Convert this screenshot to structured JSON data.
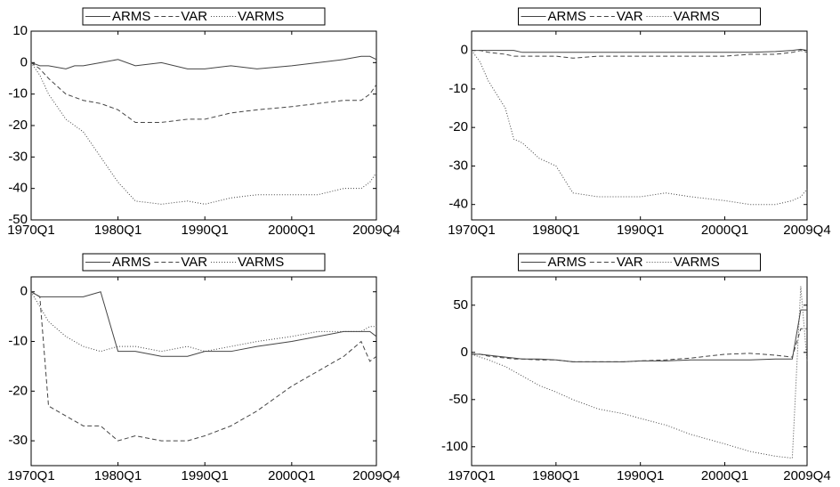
{
  "chart_data": [
    {
      "type": "line",
      "x": [
        1970,
        1971,
        1972,
        1974,
        1975,
        1976,
        1978,
        1980,
        1982,
        1985,
        1988,
        1990,
        1993,
        1996,
        2000,
        2003,
        2006,
        2008,
        2009,
        2009.75
      ],
      "xlim": [
        1970,
        2009.75
      ],
      "xticks": [
        {
          "value": 1970,
          "label": "1970Q1"
        },
        {
          "value": 1980,
          "label": "1980Q1"
        },
        {
          "value": 1990,
          "label": "1990Q1"
        },
        {
          "value": 2000,
          "label": "2000Q1"
        },
        {
          "value": 2009.75,
          "label": "2009Q4"
        }
      ],
      "ylim": [
        -50,
        10
      ],
      "yticks": [
        -50,
        -40,
        -30,
        -20,
        -10,
        0,
        10
      ],
      "series": [
        {
          "name": "ARMS",
          "color": "#444444",
          "dash": "solid",
          "values": [
            0,
            -1,
            -1,
            -2,
            -1,
            -1,
            0,
            1,
            -1,
            0,
            -2,
            -2,
            -1,
            -2,
            -1,
            0,
            1,
            2,
            2,
            1
          ]
        },
        {
          "name": "VAR",
          "color": "#444444",
          "dash": "dashed",
          "values": [
            0,
            -2,
            -5,
            -10,
            -11,
            -12,
            -13,
            -15,
            -19,
            -19,
            -18,
            -18,
            -16,
            -15,
            -14,
            -13,
            -12,
            -12,
            -10,
            -7
          ]
        },
        {
          "name": "VARMS",
          "color": "#444444",
          "dash": "dotted",
          "values": [
            0,
            -4,
            -10,
            -18,
            -20,
            -22,
            -30,
            -38,
            -44,
            -45,
            -44,
            -45,
            -43,
            -42,
            -42,
            -42,
            -40,
            -40,
            -38,
            -35
          ]
        }
      ]
    },
    {
      "type": "line",
      "x": [
        1970,
        1971,
        1972,
        1974,
        1975,
        1976,
        1978,
        1980,
        1982,
        1985,
        1988,
        1990,
        1993,
        1996,
        2000,
        2003,
        2006,
        2008,
        2009,
        2009.75
      ],
      "xlim": [
        1970,
        2009.75
      ],
      "xticks": [
        {
          "value": 1970,
          "label": "1970Q1"
        },
        {
          "value": 1980,
          "label": "1980Q1"
        },
        {
          "value": 1990,
          "label": "1990Q1"
        },
        {
          "value": 2000,
          "label": "2000Q1"
        },
        {
          "value": 2009.75,
          "label": "2009Q4"
        }
      ],
      "ylim": [
        -44,
        5
      ],
      "yticks": [
        -40,
        -30,
        -20,
        -10,
        0
      ],
      "series": [
        {
          "name": "ARMS",
          "color": "#444444",
          "dash": "solid",
          "values": [
            0,
            0,
            0,
            0,
            0,
            -0.5,
            -0.5,
            -0.5,
            -0.5,
            -0.5,
            -0.5,
            -0.5,
            -0.5,
            -0.5,
            -0.5,
            -0.5,
            -0.3,
            0,
            0.3,
            0
          ]
        },
        {
          "name": "VAR",
          "color": "#444444",
          "dash": "dashed",
          "values": [
            0,
            0,
            -0.5,
            -1,
            -1.5,
            -1.5,
            -1.5,
            -1.5,
            -2,
            -1.5,
            -1.5,
            -1.5,
            -1.5,
            -1.5,
            -1.5,
            -1,
            -1,
            -0.5,
            0,
            -0.5
          ]
        },
        {
          "name": "VARMS",
          "color": "#444444",
          "dash": "dotted",
          "values": [
            0,
            -3,
            -8,
            -15,
            -23,
            -24,
            -28,
            -30,
            -37,
            -38,
            -38,
            -38,
            -37,
            -38,
            -39,
            -40,
            -40,
            -39,
            -38,
            -36
          ]
        }
      ]
    },
    {
      "type": "line",
      "x": [
        1970,
        1971,
        1972,
        1974,
        1975,
        1976,
        1978,
        1980,
        1982,
        1985,
        1988,
        1990,
        1993,
        1996,
        2000,
        2003,
        2006,
        2008,
        2009,
        2009.75
      ],
      "xlim": [
        1970,
        2009.75
      ],
      "xticks": [
        {
          "value": 1970,
          "label": "1970Q1"
        },
        {
          "value": 1980,
          "label": "1980Q1"
        },
        {
          "value": 1990,
          "label": "1990Q1"
        },
        {
          "value": 2000,
          "label": "2000Q1"
        },
        {
          "value": 2009.75,
          "label": "2009Q4"
        }
      ],
      "ylim": [
        -35,
        3
      ],
      "yticks": [
        -30,
        -20,
        -10,
        0
      ],
      "series": [
        {
          "name": "ARMS",
          "color": "#444444",
          "dash": "solid",
          "values": [
            0,
            -1,
            -1,
            -1,
            -1,
            -1,
            0,
            -12,
            -12,
            -13,
            -13,
            -12,
            -12,
            -11,
            -10,
            -9,
            -8,
            -8,
            -8,
            -9
          ]
        },
        {
          "name": "VAR",
          "color": "#444444",
          "dash": "dashed",
          "values": [
            0,
            -1,
            -23,
            -25,
            -26,
            -27,
            -27,
            -30,
            -29,
            -30,
            -30,
            -29,
            -27,
            -24,
            -19,
            -16,
            -13,
            -10,
            -14,
            -13
          ]
        },
        {
          "name": "VARMS",
          "color": "#444444",
          "dash": "dotted",
          "values": [
            0,
            -3,
            -6,
            -9,
            -10,
            -11,
            -12,
            -11,
            -11,
            -12,
            -11,
            -12,
            -11,
            -10,
            -9,
            -8,
            -8,
            -8,
            -7,
            -7
          ]
        }
      ]
    },
    {
      "type": "line",
      "x": [
        1970,
        1971,
        1972,
        1974,
        1975,
        1976,
        1978,
        1980,
        1982,
        1985,
        1988,
        1990,
        1993,
        1996,
        2000,
        2003,
        2006,
        2008,
        2009,
        2009.75
      ],
      "xlim": [
        1970,
        2009.75
      ],
      "xticks": [
        {
          "value": 1970,
          "label": "1970Q1"
        },
        {
          "value": 1980,
          "label": "1980Q1"
        },
        {
          "value": 1990,
          "label": "1990Q1"
        },
        {
          "value": 2000,
          "label": "2000Q1"
        },
        {
          "value": 2009.75,
          "label": "2009Q4"
        }
      ],
      "ylim": [
        -120,
        80
      ],
      "yticks": [
        -100,
        -50,
        0,
        50
      ],
      "series": [
        {
          "name": "ARMS",
          "color": "#444444",
          "dash": "solid",
          "values": [
            -2,
            -2,
            -3,
            -5,
            -6,
            -7,
            -7,
            -8,
            -10,
            -10,
            -10,
            -9,
            -9,
            -8,
            -8,
            -8,
            -7,
            -7,
            45,
            45
          ]
        },
        {
          "name": "VAR",
          "color": "#444444",
          "dash": "dashed",
          "values": [
            -2,
            -2,
            -4,
            -6,
            -7,
            -7,
            -8,
            -8,
            -10,
            -10,
            -10,
            -9,
            -8,
            -6,
            -2,
            -1,
            -3,
            -5,
            25,
            25
          ]
        },
        {
          "name": "VARMS",
          "color": "#444444",
          "dash": "dotted",
          "values": [
            -2,
            -5,
            -8,
            -15,
            -20,
            -25,
            -35,
            -42,
            -50,
            -60,
            -65,
            -70,
            -77,
            -87,
            -97,
            -105,
            -110,
            -112,
            70,
            -10
          ]
        }
      ]
    }
  ]
}
